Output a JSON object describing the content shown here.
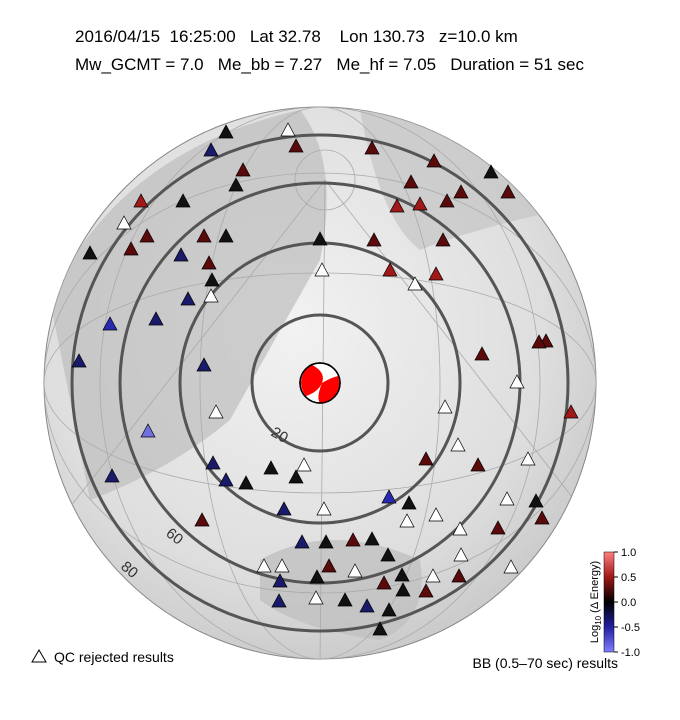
{
  "header": {
    "line1": "2016/04/15  16:25:00   Lat 32.78    Lon 130.73   z=10.0 km",
    "line2": "Mw_GCMT = 7.0   Me_bb = 7.27   Me_hf = 7.05   Duration = 51 sec"
  },
  "ring_labels": [
    "20",
    "60",
    "80"
  ],
  "colorbar": {
    "title_prefix": "Log",
    "title_sub": "10",
    "title_suffix": " (Δ Energy)",
    "lim": [
      -1,
      1
    ],
    "ticks": [
      {
        "value": 1,
        "label": "1.0"
      },
      {
        "value": 0.5,
        "label": "0.5"
      },
      {
        "value": 0,
        "label": "0.0"
      },
      {
        "value": -0.5,
        "label": "-0.5"
      },
      {
        "value": -1,
        "label": "-1.0"
      }
    ]
  },
  "legend": {
    "qc": "QC rejected results",
    "bb": "BB (0.5–70 sec) results"
  }
}
